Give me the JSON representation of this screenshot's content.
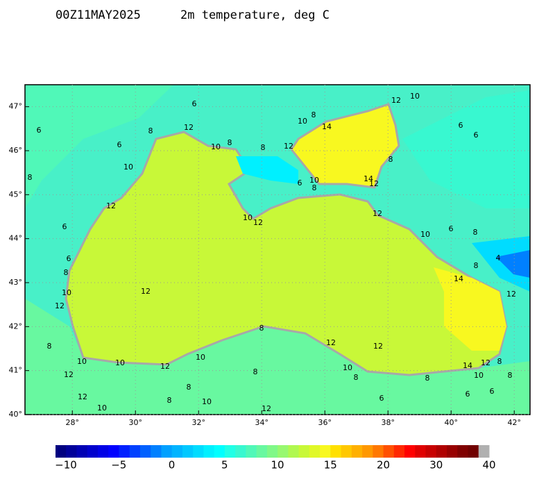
{
  "header": {
    "run": "00Z11MAY2025",
    "field": "2m temperature, deg C"
  },
  "map": {
    "lonlim": [
      26.5,
      42.5
    ],
    "latlim": [
      40,
      47.5
    ],
    "lon_ticks": [
      {
        "value": 28,
        "label": "28°"
      },
      {
        "value": 30,
        "label": "30°"
      },
      {
        "value": 32,
        "label": "32°"
      },
      {
        "value": 34,
        "label": "34°"
      },
      {
        "value": 36,
        "label": "36°"
      },
      {
        "value": 38,
        "label": "38°"
      },
      {
        "value": 40,
        "label": "40°"
      },
      {
        "value": 42,
        "label": "42°"
      }
    ],
    "lat_ticks": [
      {
        "value": 40,
        "label": "40°"
      },
      {
        "value": 41,
        "label": "41°"
      },
      {
        "value": 42,
        "label": "42°"
      },
      {
        "value": 43,
        "label": "43°"
      },
      {
        "value": 44,
        "label": "44°"
      },
      {
        "value": 45,
        "label": "45°"
      },
      {
        "value": 46,
        "label": "46°"
      },
      {
        "value": 47,
        "label": "47°"
      }
    ],
    "contour_labels": [
      "6",
      "12",
      "10",
      "8",
      "10",
      "14",
      "6",
      "8",
      "12",
      "6",
      "6",
      "6",
      "10",
      "8",
      "8",
      "12",
      "8",
      "10",
      "8",
      "6",
      "10",
      "8",
      "14",
      "12",
      "12",
      "12",
      "10",
      "12",
      "6",
      "6",
      "8",
      "10",
      "6",
      "4",
      "8",
      "8",
      "14",
      "10",
      "12",
      "12",
      "12",
      "8",
      "8",
      "12",
      "12",
      "10",
      "10",
      "12",
      "10",
      "10",
      "14",
      "12",
      "8",
      "12",
      "8",
      "8",
      "8",
      "10",
      "8",
      "8",
      "6",
      "6",
      "12",
      "8",
      "10",
      "6",
      "10",
      "12"
    ]
  },
  "colorbar": {
    "labels": [
      "−10",
      "−5",
      "0",
      "5",
      "10",
      "15",
      "20",
      "30",
      "40"
    ],
    "swatches": [
      "#000080",
      "#00009a",
      "#0000b4",
      "#0000cd",
      "#0000e6",
      "#0000ff",
      "#0020ff",
      "#0040ff",
      "#0060ff",
      "#0080ff",
      "#00a0ff",
      "#00b4ff",
      "#00c8ff",
      "#00dcff",
      "#00f0ff",
      "#00ffff",
      "#20ffe6",
      "#38f8d0",
      "#50f8b8",
      "#68f8a0",
      "#80f888",
      "#98f870",
      "#b0f850",
      "#c8f838",
      "#e0f828",
      "#f8f820",
      "#ffe000",
      "#ffc800",
      "#ffb000",
      "#ff9800",
      "#ff7800",
      "#ff5000",
      "#ff2800",
      "#ff0000",
      "#e00000",
      "#c80000",
      "#b00000",
      "#980000",
      "#800000",
      "#700000",
      "#b0b0b0"
    ]
  }
}
